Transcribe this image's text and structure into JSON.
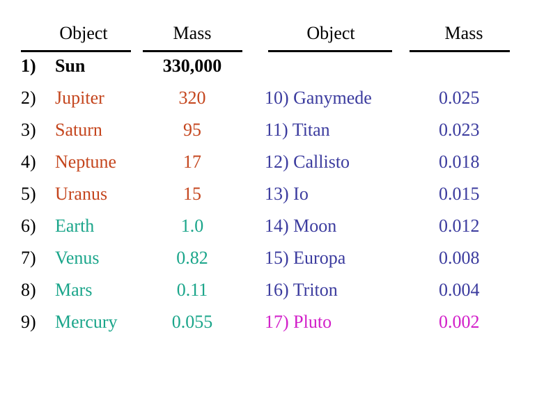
{
  "left": {
    "headers": [
      "Object",
      "Mass"
    ],
    "rows": [
      [
        "1)",
        "Sun",
        "330,000"
      ],
      [
        "2)",
        "Jupiter",
        "320"
      ],
      [
        "3)",
        "Saturn",
        "95"
      ],
      [
        "4)",
        "Neptune",
        "17"
      ],
      [
        "5)",
        "Uranus",
        "15"
      ],
      [
        "6)",
        "Earth",
        "1.0"
      ],
      [
        "7)",
        "Venus",
        "0.82"
      ],
      [
        "8)",
        "Mars",
        "0.11"
      ],
      [
        "9)",
        "Mercury",
        "0.055"
      ]
    ]
  },
  "right": {
    "headers": [
      "Object",
      "Mass"
    ],
    "rows": [
      [
        "10) Ganymede",
        "0.025"
      ],
      [
        "11) Titan",
        "0.023"
      ],
      [
        "12) Callisto",
        "0.018"
      ],
      [
        "13) Io",
        "0.015"
      ],
      [
        "14) Moon",
        "0.012"
      ],
      [
        "15) Europa",
        "0.008"
      ],
      [
        "16) Triton",
        "0.004"
      ],
      [
        "17) Pluto",
        "0.002"
      ]
    ]
  }
}
